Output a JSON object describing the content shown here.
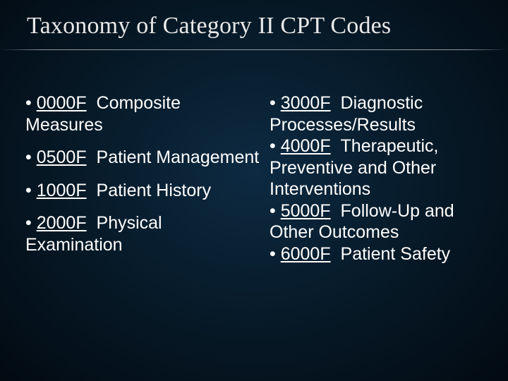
{
  "slide": {
    "title": "Taxonomy of Category II CPT Codes",
    "title_font": "Times New Roman",
    "title_fontsize": 34,
    "title_color": "#e8e8e8",
    "body_font": "Arial",
    "body_fontsize": 25,
    "body_color": "#ffffff",
    "background_gradient": {
      "type": "radial",
      "stops": [
        "#0d2a42",
        "#061825",
        "#020a12"
      ]
    },
    "divider_color": "rgba(255,255,255,0.55)",
    "bullet_char": "•",
    "left_items": [
      {
        "code": "0000F",
        "label": "Composite Measures"
      },
      {
        "code": "0500F",
        "label": "Patient Management"
      },
      {
        "code": "1000F",
        "label": "Patient History"
      },
      {
        "code": "2000F",
        "label": "Physical Examination"
      }
    ],
    "right_items": [
      {
        "code": "3000F",
        "label": "Diagnostic Processes/Results"
      },
      {
        "code": "4000F",
        "label": "Therapeutic, Preventive and Other Interventions"
      },
      {
        "code": "5000F",
        "label": "Follow-Up and Other Outcomes"
      },
      {
        "code": "6000F",
        "label": "Patient Safety"
      }
    ]
  }
}
